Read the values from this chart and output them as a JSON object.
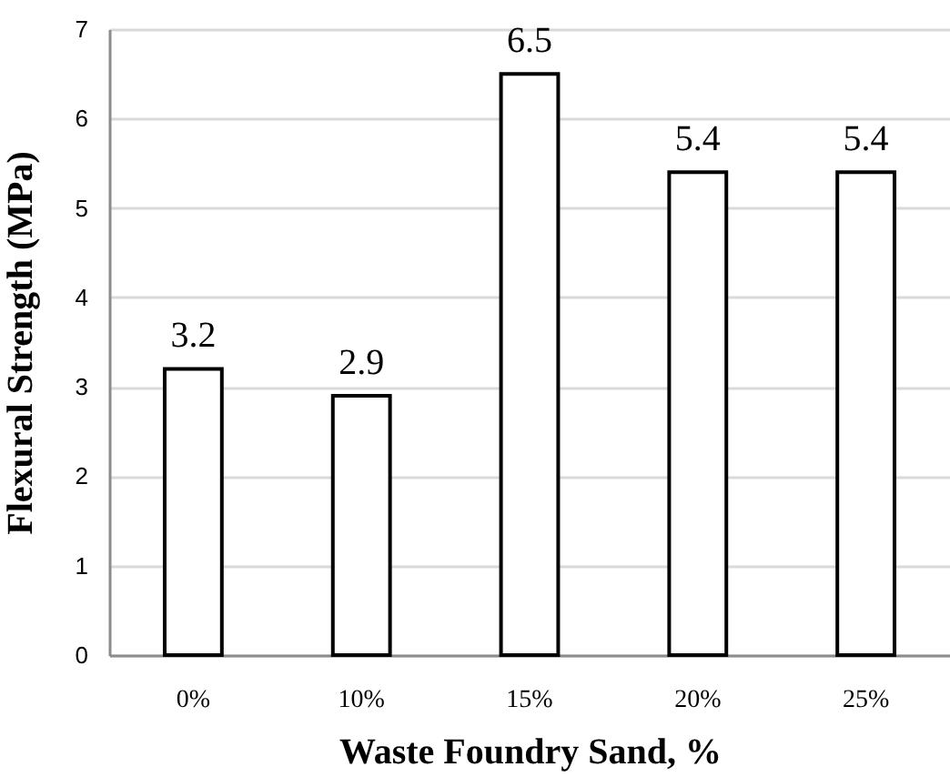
{
  "chart_data": {
    "type": "bar",
    "xlabel": "Waste Foundry Sand, %",
    "ylabel": "Flexural Strength (MPa)",
    "categories": [
      "0%",
      "10%",
      "15%",
      "20%",
      "25%"
    ],
    "values": [
      3.2,
      2.9,
      6.5,
      5.4,
      5.4
    ],
    "color": "#ffffff",
    "ylim": [
      0,
      7
    ],
    "yticks": [
      0,
      1,
      2,
      3,
      4,
      5,
      6,
      7
    ],
    "grid": "y",
    "data_labels": true
  }
}
